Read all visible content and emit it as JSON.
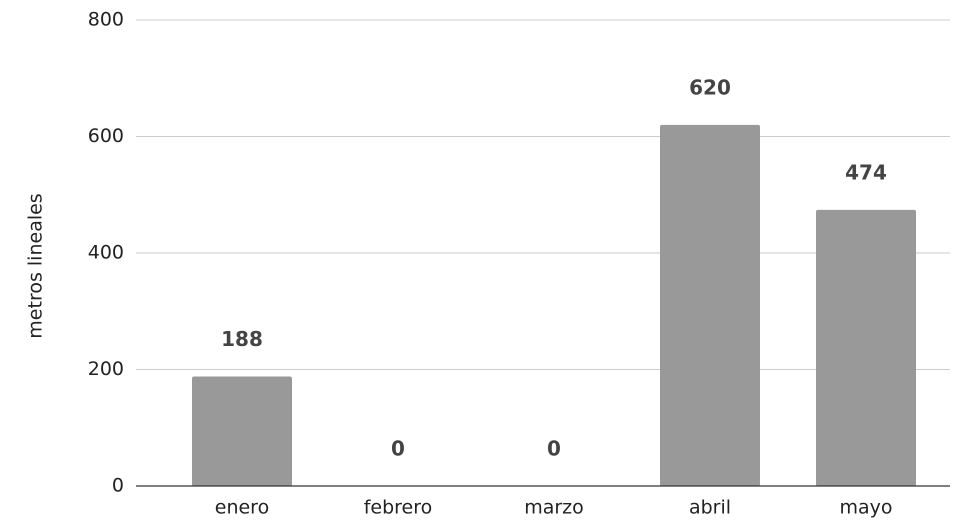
{
  "chart_data": {
    "type": "bar",
    "y_axis_label": "metros lineales",
    "categories": [
      "enero",
      "febrero",
      "marzo",
      "abril",
      "mayo"
    ],
    "values": [
      188,
      0,
      0,
      620,
      474
    ],
    "color": "#999999",
    "ylim": [
      0,
      800
    ],
    "yticks": [
      0,
      200,
      400,
      600,
      800
    ],
    "grid": true,
    "data_labels": true
  }
}
